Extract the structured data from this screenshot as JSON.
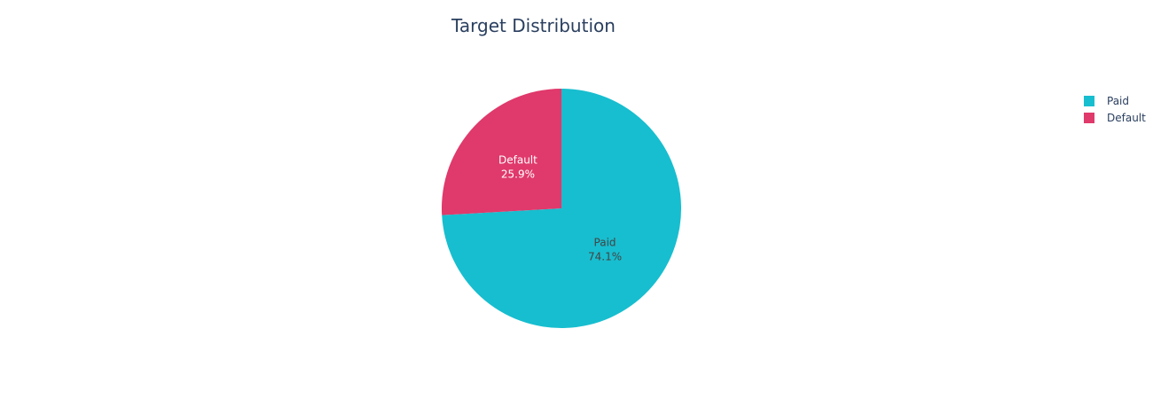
{
  "chart_data": {
    "type": "pie",
    "title": "Target Distribution",
    "labels": [
      "Paid",
      "Default"
    ],
    "values": [
      74.1,
      25.9
    ],
    "colors": [
      "#17becf",
      "#e0396b"
    ],
    "text_colors": [
      "#444444",
      "#ffffff"
    ],
    "slice_text": [
      {
        "name": "Paid",
        "percent": "74.1%"
      },
      {
        "name": "Default",
        "percent": "25.9%"
      }
    ],
    "legend": {
      "placement": "top-right",
      "items": [
        "Paid",
        "Default"
      ]
    },
    "direction": "clockwise",
    "start_angle": "top"
  }
}
